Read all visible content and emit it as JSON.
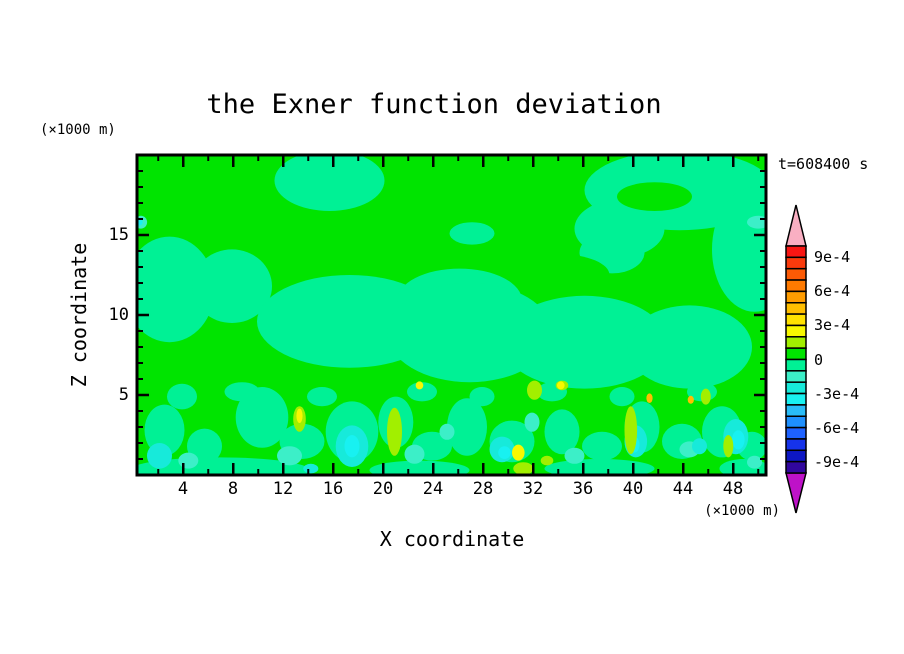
{
  "title": "the Exner function deviation",
  "time_label": "t=608400 s",
  "axes": {
    "x_label": "X coordinate",
    "x_unit": "(×1000 m)",
    "z_label": "Z coordinate",
    "z_unit": "(×1000 m)",
    "x_range": [
      0.3,
      50.62
    ],
    "z_range": [
      0,
      20
    ],
    "x_major_ticks": [
      4,
      8,
      12,
      16,
      20,
      24,
      28,
      32,
      36,
      40,
      44,
      48
    ],
    "x_minor_ticks": [
      2,
      6,
      10,
      14,
      18,
      22,
      26,
      30,
      34,
      38,
      42,
      46,
      50
    ],
    "z_major_ticks": [
      5,
      10,
      15
    ],
    "z_minor_ticks": [
      1,
      2,
      3,
      4,
      6,
      7,
      8,
      9,
      11,
      12,
      13,
      14,
      16,
      17,
      18,
      19
    ]
  },
  "colorbar": {
    "labels": [
      {
        "text": "9e-4",
        "value": 0.0009
      },
      {
        "text": "6e-4",
        "value": 0.0006
      },
      {
        "text": "3e-4",
        "value": 0.0003
      },
      {
        "text": "0",
        "value": 0
      },
      {
        "text": "-3e-4",
        "value": -0.0003
      },
      {
        "text": "-6e-4",
        "value": -0.0006
      },
      {
        "text": "-9e-4",
        "value": -0.0009
      }
    ],
    "band_colors_top_to_bottom": [
      "#F81613",
      "#FA3A0C",
      "#FC5A05",
      "#FF7A00",
      "#FF9C00",
      "#FFBE00",
      "#FFE100",
      "#F8F800",
      "#A2EF00",
      "#00E400",
      "#00F195",
      "#3CEFC8",
      "#17EADA",
      "#18F1F1",
      "#29BCF8",
      "#1E90FF",
      "#1E62FF",
      "#1633EA",
      "#0D17C4",
      "#31079E"
    ],
    "over_arrow_color": "#F9AFC2",
    "under_arrow_color": "#BE12C8",
    "level_max": 0.001,
    "level_min": -0.001,
    "contour_interval": 0.0001
  },
  "chart_data": {
    "type": "filled_contour",
    "title": "the Exner function deviation",
    "xlabel": "X coordinate (×1000 m)",
    "ylabel": "Z coordinate (×1000 m)",
    "annotation": "t=608400 s",
    "xlim": [
      0.3,
      50.62
    ],
    "ylim": [
      0,
      20
    ],
    "contour_interval": 0.0001,
    "levels": [
      -0.001,
      0.001
    ],
    "base_band": "green",
    "palette_bands": {
      "green": {
        "range": [
          0,
          0.0001
        ],
        "color": "#00E400"
      },
      "spring": {
        "range": [
          -0.0001,
          0
        ],
        "color": "#00F195"
      },
      "aqua": {
        "range": [
          -0.0002,
          -0.0001
        ],
        "color": "#3CEFC8"
      },
      "turq": {
        "range": [
          -0.0003,
          -0.0002
        ],
        "color": "#17EADA"
      },
      "cyan": {
        "range": [
          -0.0004,
          -0.0003
        ],
        "color": "#18F1F1"
      },
      "chart": {
        "range": [
          0.0001,
          0.0002
        ],
        "color": "#A2EF00"
      },
      "yellow": {
        "range": [
          0.0003,
          0.0004
        ],
        "color": "#F8F800"
      },
      "gold": {
        "range": [
          0.0005,
          0.0006
        ],
        "color": "#FFBE00"
      }
    },
    "field_blobs": [
      [
        "spring",
        15.7,
        18.4,
        4.4,
        1.9
      ],
      [
        "spring",
        27.1,
        15.1,
        1.8,
        0.7
      ],
      [
        "spring",
        43.7,
        17.8,
        7.6,
        2.5
      ],
      [
        "spring",
        49.7,
        14.1,
        3.4,
        3.9
      ],
      [
        "spring",
        38.9,
        15.4,
        3.6,
        1.8
      ],
      [
        "spring",
        38.3,
        13.9,
        2.6,
        1.3
      ],
      [
        "spring",
        2.9,
        11.6,
        3.6,
        3.3
      ],
      [
        "spring",
        7.9,
        11.8,
        3.2,
        2.3
      ],
      [
        "spring",
        17.3,
        9.6,
        7.4,
        2.9
      ],
      [
        "spring",
        26.1,
        10.9,
        5.0,
        2.0
      ],
      [
        "spring",
        26.9,
        8.9,
        6.6,
        3.1
      ],
      [
        "spring",
        36.1,
        8.3,
        6.6,
        2.9
      ],
      [
        "spring",
        44.5,
        8.0,
        5.0,
        2.6
      ],
      [
        "green",
        41.7,
        17.4,
        3.0,
        0.9
      ],
      [
        "green",
        34.1,
        12.5,
        4.0,
        1.3
      ],
      [
        "spring",
        2.5,
        2.8,
        1.6,
        1.6
      ],
      [
        "spring",
        5.7,
        1.8,
        1.4,
        1.1
      ],
      [
        "spring",
        10.3,
        3.6,
        2.1,
        1.9
      ],
      [
        "spring",
        13.5,
        2.1,
        1.8,
        1.1
      ],
      [
        "spring",
        17.5,
        2.7,
        2.1,
        1.9
      ],
      [
        "spring",
        21.0,
        3.3,
        1.4,
        1.6
      ],
      [
        "spring",
        23.9,
        1.8,
        1.6,
        0.9
      ],
      [
        "spring",
        26.7,
        3.0,
        1.6,
        1.8
      ],
      [
        "spring",
        30.3,
        2.1,
        1.8,
        1.3
      ],
      [
        "spring",
        34.3,
        2.7,
        1.4,
        1.4
      ],
      [
        "spring",
        37.5,
        1.8,
        1.6,
        0.9
      ],
      [
        "spring",
        40.7,
        3.0,
        1.4,
        1.6
      ],
      [
        "spring",
        43.9,
        2.1,
        1.6,
        1.1
      ],
      [
        "spring",
        47.1,
        2.7,
        1.6,
        1.6
      ],
      [
        "spring",
        49.5,
        1.8,
        1.2,
        0.9
      ],
      [
        "spring",
        3.9,
        4.9,
        1.2,
        0.8
      ],
      [
        "spring",
        8.7,
        5.2,
        1.4,
        0.6
      ],
      [
        "spring",
        15.1,
        4.9,
        1.2,
        0.6
      ],
      [
        "spring",
        23.1,
        5.2,
        1.2,
        0.6
      ],
      [
        "spring",
        27.9,
        4.9,
        1.0,
        0.6
      ],
      [
        "spring",
        33.5,
        5.2,
        1.2,
        0.6
      ],
      [
        "spring",
        39.1,
        4.9,
        1.0,
        0.6
      ],
      [
        "spring",
        45.5,
        5.2,
        1.2,
        0.6
      ],
      [
        "spring",
        6.9,
        0.3,
        7.2,
        0.8
      ],
      [
        "spring",
        22.9,
        0.3,
        4.0,
        0.6
      ],
      [
        "spring",
        37.3,
        0.4,
        4.4,
        0.6
      ],
      [
        "spring",
        48.9,
        0.4,
        2.0,
        0.6
      ],
      [
        "aqua",
        4.4,
        0.9,
        0.8,
        0.5
      ],
      [
        "aqua",
        12.5,
        1.2,
        1.0,
        0.6
      ],
      [
        "aqua",
        22.5,
        1.3,
        0.8,
        0.6
      ],
      [
        "aqua",
        25.1,
        2.7,
        0.6,
        0.5
      ],
      [
        "aqua",
        35.3,
        1.2,
        0.8,
        0.5
      ],
      [
        "aqua",
        44.5,
        1.6,
        0.8,
        0.5
      ],
      [
        "aqua",
        31.9,
        3.3,
        0.6,
        0.6
      ],
      [
        "aqua",
        49.7,
        0.8,
        0.6,
        0.4
      ],
      [
        "aqua",
        0.6,
        15.8,
        0.5,
        0.4
      ],
      [
        "aqua",
        50.0,
        15.8,
        0.9,
        0.4
      ],
      [
        "turq",
        2.1,
        1.2,
        1.0,
        0.8
      ],
      [
        "turq",
        17.5,
        1.8,
        1.3,
        1.3
      ],
      [
        "turq",
        29.5,
        1.6,
        1.0,
        0.8
      ],
      [
        "turq",
        40.2,
        2.1,
        0.9,
        1.0
      ],
      [
        "turq",
        48.2,
        2.4,
        1.0,
        1.1
      ],
      [
        "turq",
        14.2,
        0.4,
        0.6,
        0.3
      ],
      [
        "turq",
        45.3,
        1.8,
        0.6,
        0.5
      ],
      [
        "cyan",
        17.5,
        1.8,
        0.6,
        0.7
      ],
      [
        "cyan",
        29.7,
        1.4,
        0.5,
        0.4
      ],
      [
        "cyan",
        40.1,
        1.9,
        0.4,
        0.5
      ],
      [
        "cyan",
        48.4,
        2.2,
        0.5,
        0.6
      ],
      [
        "cyan",
        0.5,
        15.8,
        0.25,
        0.2
      ],
      [
        "chart",
        13.3,
        3.5,
        0.5,
        0.8
      ],
      [
        "chart",
        20.9,
        2.7,
        0.6,
        1.5
      ],
      [
        "chart",
        32.1,
        5.3,
        0.6,
        0.6
      ],
      [
        "chart",
        34.3,
        5.6,
        0.5,
        0.3
      ],
      [
        "chart",
        39.8,
        2.8,
        0.5,
        1.5
      ],
      [
        "chart",
        45.8,
        4.9,
        0.4,
        0.5
      ],
      [
        "chart",
        31.2,
        0.4,
        0.8,
        0.4
      ],
      [
        "chart",
        47.6,
        1.8,
        0.4,
        0.7
      ],
      [
        "chart",
        33.1,
        0.9,
        0.5,
        0.3
      ],
      [
        "yellow",
        13.3,
        3.7,
        0.25,
        0.45
      ],
      [
        "yellow",
        30.8,
        1.4,
        0.5,
        0.5
      ],
      [
        "yellow",
        34.2,
        5.6,
        0.3,
        0.25
      ],
      [
        "yellow",
        22.9,
        5.6,
        0.3,
        0.25
      ],
      [
        "gold",
        41.3,
        4.8,
        0.25,
        0.3
      ],
      [
        "gold",
        44.6,
        4.7,
        0.25,
        0.25
      ]
    ]
  }
}
